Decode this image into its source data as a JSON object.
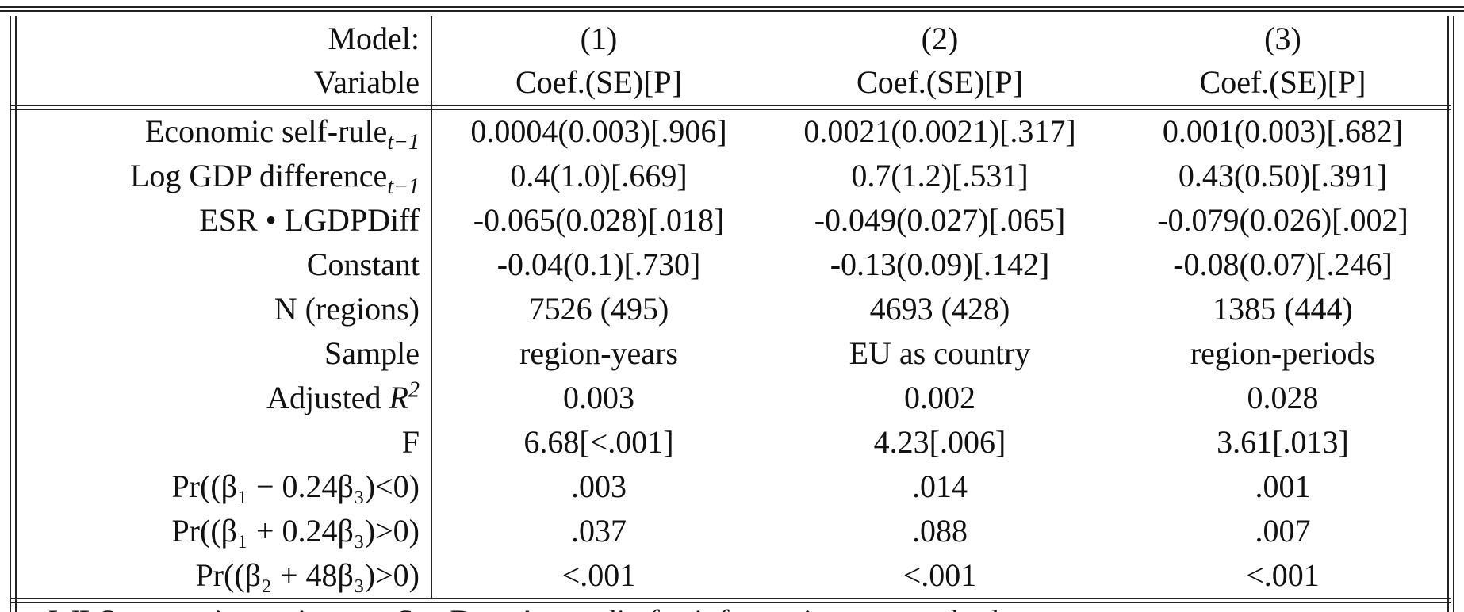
{
  "table": {
    "header": [
      {
        "label": "Model:",
        "cells": [
          "(1)",
          "(2)",
          "(3)"
        ]
      },
      {
        "label": "Variable",
        "cells": [
          "Coef.(SE)[P]",
          "Coef.(SE)[P]",
          "Coef.(SE)[P]"
        ]
      }
    ],
    "rows": [
      {
        "label": "Economic self-rule",
        "sub": "t−1",
        "cells": [
          "0.0004(0.003)[.906]",
          "0.0021(0.0021)[.317]",
          "0.001(0.003)[.682]"
        ]
      },
      {
        "label": "Log GDP difference",
        "sub": "t−1",
        "cells": [
          "0.4(1.0)[.669]",
          "0.7(1.2)[.531]",
          "0.43(0.50)[.391]"
        ]
      },
      {
        "label": "ESR • LGDPDiff",
        "cells": [
          "-0.065(0.028)[.018]",
          "-0.049(0.027)[.065]",
          "-0.079(0.026)[.002]"
        ]
      },
      {
        "label": "Constant",
        "cells": [
          "-0.04(0.1)[.730]",
          "-0.13(0.09)[.142]",
          "-0.08(0.07)[.246]"
        ]
      },
      {
        "label": "N (regions)",
        "cells": [
          "7526 (495)",
          "4693 (428)",
          "1385 (444)"
        ]
      },
      {
        "label": "Sample",
        "cells": [
          "region-years",
          "EU as country",
          "region-periods"
        ]
      },
      {
        "label": "Adjusted R",
        "sup": "2",
        "cells": [
          "0.003",
          "0.002",
          "0.028"
        ]
      },
      {
        "label": "F",
        "cells": [
          "6.68[<.001]",
          "4.23[.006]",
          "3.61[.013]"
        ]
      },
      {
        "label": "Pr((β₁ − 0.24β₃)<0)",
        "cells": [
          ".003",
          ".014",
          ".001"
        ]
      },
      {
        "label": "Pr((β₁ + 0.24β₃)>0)",
        "cells": [
          ".037",
          ".088",
          ".007"
        ]
      },
      {
        "label": "Pr((β₂ + 48β₃)>0)",
        "cells": [
          "<.001",
          "<.001",
          "<.001"
        ]
      }
    ],
    "footer": "WLS regression estimates. See Data Appendix for information on standard"
  }
}
